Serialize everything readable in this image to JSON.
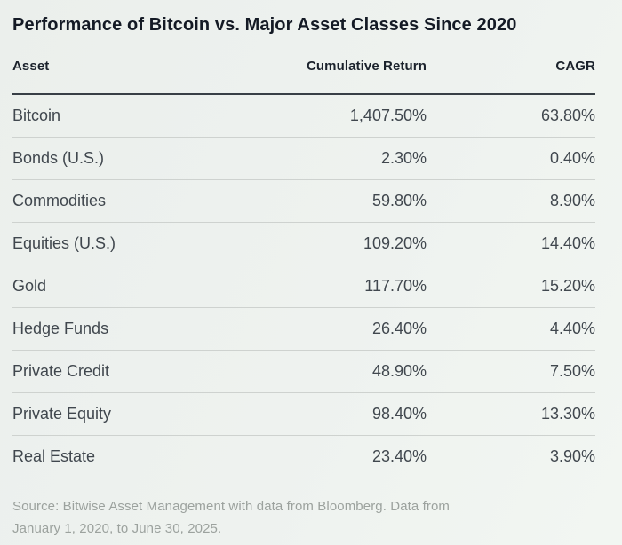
{
  "title": "Performance of Bitcoin vs. Major Asset Classes Since 2020",
  "table": {
    "columns": {
      "asset": "Asset",
      "cumulative_return": "Cumulative Return",
      "cagr": "CAGR"
    },
    "rows": [
      {
        "asset": "Bitcoin",
        "cumulative_return": "1,407.50%",
        "cagr": "63.80%"
      },
      {
        "asset": "Bonds (U.S.)",
        "cumulative_return": "2.30%",
        "cagr": "0.40%"
      },
      {
        "asset": "Commodities",
        "cumulative_return": "59.80%",
        "cagr": "8.90%"
      },
      {
        "asset": "Equities (U.S.)",
        "cumulative_return": "109.20%",
        "cagr": "14.40%"
      },
      {
        "asset": "Gold",
        "cumulative_return": "117.70%",
        "cagr": "15.20%"
      },
      {
        "asset": "Hedge Funds",
        "cumulative_return": "26.40%",
        "cagr": "4.40%"
      },
      {
        "asset": "Private Credit",
        "cumulative_return": "48.90%",
        "cagr": "7.50%"
      },
      {
        "asset": "Private Equity",
        "cumulative_return": "98.40%",
        "cagr": "13.30%"
      },
      {
        "asset": "Real Estate",
        "cumulative_return": "23.40%",
        "cagr": "3.90%"
      }
    ]
  },
  "source": {
    "line1": "Source: Bitwise Asset Management with data from Bloomberg. Data from",
    "line2": "January 1, 2020, to June 30, 2025."
  },
  "colors": {
    "background": "#edf1ee",
    "title_text": "#141a25",
    "header_text": "#1b222c",
    "row_text": "#40474e",
    "thick_rule": "#383f46",
    "thin_rule": "#ced2cf",
    "source_text": "#9ca29e"
  },
  "chart_data": {
    "type": "table",
    "title": "Performance of Bitcoin vs. Major Asset Classes Since 2020",
    "columns": [
      "Asset",
      "Cumulative Return",
      "CAGR"
    ],
    "rows": [
      [
        "Bitcoin",
        "1,407.50%",
        "63.80%"
      ],
      [
        "Bonds (U.S.)",
        "2.30%",
        "0.40%"
      ],
      [
        "Commodities",
        "59.80%",
        "8.90%"
      ],
      [
        "Equities (U.S.)",
        "109.20%",
        "14.40%"
      ],
      [
        "Gold",
        "117.70%",
        "15.20%"
      ],
      [
        "Hedge Funds",
        "26.40%",
        "4.40%"
      ],
      [
        "Private Credit",
        "48.90%",
        "7.50%"
      ],
      [
        "Private Equity",
        "98.40%",
        "13.30%"
      ],
      [
        "Real Estate",
        "23.40%",
        "3.90%"
      ]
    ],
    "numeric": {
      "cumulative_return_pct": [
        1407.5,
        2.3,
        59.8,
        109.2,
        117.7,
        26.4,
        48.9,
        98.4,
        23.4
      ],
      "cagr_pct": [
        63.8,
        0.4,
        8.9,
        14.4,
        15.2,
        4.4,
        7.5,
        13.3,
        3.9
      ]
    },
    "source": "Source: Bitwise Asset Management with data from Bloomberg. Data from January 1, 2020, to June 30, 2025."
  }
}
